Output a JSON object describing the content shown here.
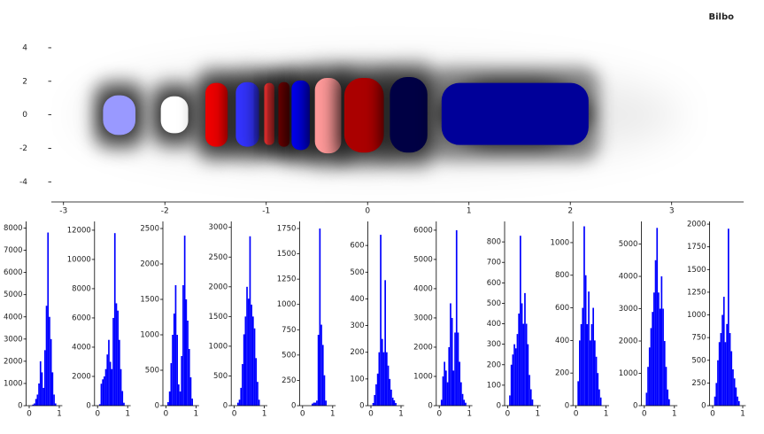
{
  "chart_data": [
    {
      "type": "cluster",
      "title": "Bilbo",
      "xlim": [
        -3.12,
        3.71
      ],
      "ylim": [
        -5.2,
        5.9
      ],
      "xticks": [
        -3,
        -2,
        -1,
        0,
        1,
        2,
        3
      ],
      "yticks": [
        -4,
        -2,
        0,
        2,
        4
      ],
      "series": [
        {
          "color": "#9999ff",
          "x": [
            -2.61,
            -2.29
          ],
          "y": [
            -1.2,
            1.16
          ]
        },
        {
          "color": "#ffffff",
          "x": [
            -2.04,
            -1.77
          ],
          "y": [
            -1.1,
            1.1
          ]
        },
        {
          "color": "#ee0000",
          "x": [
            -1.6,
            -1.38
          ],
          "y": [
            -1.9,
            1.9
          ]
        },
        {
          "color": "#3333ff",
          "x": [
            -1.3,
            -1.07
          ],
          "y": [
            -1.9,
            1.95
          ]
        },
        {
          "color": "#ff3333",
          "x": [
            -1.02,
            -0.92
          ],
          "y": [
            -1.8,
            1.9
          ]
        },
        {
          "color": "#800000",
          "x": [
            -0.88,
            -0.77
          ],
          "y": [
            -1.9,
            1.95
          ]
        },
        {
          "color": "#0000ee",
          "x": [
            -0.75,
            -0.57
          ],
          "y": [
            -2.1,
            2.05
          ]
        },
        {
          "color": "#ff9999",
          "x": [
            -0.52,
            -0.26
          ],
          "y": [
            -2.3,
            2.2
          ]
        },
        {
          "color": "#aa0000",
          "x": [
            -0.23,
            0.16
          ],
          "y": [
            -2.25,
            2.2
          ]
        },
        {
          "color": "#000044",
          "x": [
            0.22,
            0.59
          ],
          "y": [
            -2.25,
            2.25
          ]
        },
        {
          "color": "#000099",
          "x": [
            0.73,
            2.18
          ],
          "y": [
            -1.8,
            1.9
          ]
        }
      ]
    },
    {
      "type": "histogram",
      "color": "#0000ff",
      "xlim": [
        -0.1,
        1.1
      ],
      "ylim": [
        0,
        8300
      ],
      "xticks": [
        0,
        1
      ],
      "yticks": [
        0,
        1000,
        2000,
        3000,
        4000,
        5000,
        6000,
        7000,
        8000
      ],
      "bins": [
        0,
        0.05,
        0.1,
        0.15,
        0.2,
        0.25,
        0.3,
        0.35,
        0.4,
        0.45,
        0.5,
        0.55,
        0.6,
        0.65,
        0.7,
        0.75,
        0.8,
        0.85,
        0.9,
        0.95,
        1
      ],
      "counts": [
        0,
        0,
        50,
        100,
        300,
        500,
        1000,
        2000,
        1500,
        800,
        2500,
        4500,
        7800,
        4000,
        3000,
        1500,
        500,
        100,
        0,
        0
      ]
    },
    {
      "type": "histogram",
      "color": "#0000ff",
      "xlim": [
        -0.1,
        1.1
      ],
      "ylim": [
        0,
        12600
      ],
      "xticks": [
        0,
        1
      ],
      "yticks": [
        0,
        2000,
        4000,
        6000,
        8000,
        10000,
        12000
      ],
      "bins": [
        0,
        0.05,
        0.1,
        0.15,
        0.2,
        0.25,
        0.3,
        0.35,
        0.4,
        0.45,
        0.5,
        0.55,
        0.6,
        0.65,
        0.7,
        0.75,
        0.8,
        0.85,
        0.9,
        0.95,
        1
      ],
      "counts": [
        0,
        100,
        1500,
        1800,
        2000,
        2500,
        3500,
        4500,
        3000,
        2500,
        6000,
        11800,
        7000,
        6500,
        4500,
        2500,
        1000,
        200,
        0,
        0
      ]
    },
    {
      "type": "histogram",
      "color": "#0000ff",
      "xlim": [
        -0.1,
        1.1
      ],
      "ylim": [
        0,
        2600
      ],
      "xticks": [
        0,
        1
      ],
      "yticks": [
        0,
        500,
        1000,
        1500,
        2000,
        2500
      ],
      "bins": [
        0,
        0.05,
        0.1,
        0.15,
        0.2,
        0.25,
        0.3,
        0.35,
        0.4,
        0.45,
        0.5,
        0.55,
        0.6,
        0.65,
        0.7,
        0.75,
        0.8,
        0.85,
        0.9,
        0.95,
        1
      ],
      "counts": [
        0,
        50,
        200,
        600,
        1000,
        1300,
        1700,
        1000,
        300,
        200,
        700,
        1700,
        2400,
        1500,
        1200,
        800,
        400,
        100,
        0,
        0
      ]
    },
    {
      "type": "histogram",
      "color": "#0000ff",
      "xlim": [
        -0.1,
        1.1
      ],
      "ylim": [
        0,
        3100
      ],
      "xticks": [
        0,
        1
      ],
      "yticks": [
        0,
        500,
        1000,
        1500,
        2000,
        2500,
        3000
      ],
      "bins": [
        0,
        0.05,
        0.1,
        0.15,
        0.2,
        0.25,
        0.3,
        0.35,
        0.4,
        0.45,
        0.5,
        0.55,
        0.6,
        0.65,
        0.7,
        0.75,
        0.8,
        0.85,
        0.9,
        0.95,
        1
      ],
      "counts": [
        0,
        0,
        50,
        100,
        300,
        700,
        1200,
        1500,
        2000,
        1800,
        2850,
        1700,
        1500,
        1300,
        800,
        400,
        100,
        0,
        0,
        0
      ]
    },
    {
      "type": "histogram",
      "color": "#0000ff",
      "xlim": [
        -0.1,
        1.1
      ],
      "ylim": [
        0,
        1820
      ],
      "xticks": [
        0,
        1
      ],
      "yticks": [
        0,
        250,
        500,
        750,
        1000,
        1250,
        1500,
        1750
      ],
      "bins": [
        0,
        0.05,
        0.1,
        0.15,
        0.2,
        0.25,
        0.3,
        0.35,
        0.4,
        0.45,
        0.5,
        0.55,
        0.6,
        0.65,
        0.7,
        0.75,
        0.8,
        0.85,
        0.9,
        0.95,
        1
      ],
      "counts": [
        0,
        0,
        0,
        0,
        0,
        0,
        20,
        30,
        30,
        50,
        700,
        1750,
        800,
        600,
        300,
        50,
        0,
        0,
        0,
        0
      ]
    },
    {
      "type": "histogram",
      "color": "#0000ff",
      "xlim": [
        -0.1,
        1.1
      ],
      "ylim": [
        0,
        690
      ],
      "xticks": [
        0,
        1
      ],
      "yticks": [
        0,
        100,
        200,
        300,
        400,
        500,
        600
      ],
      "bins": [
        0,
        0.05,
        0.1,
        0.15,
        0.2,
        0.25,
        0.3,
        0.35,
        0.4,
        0.45,
        0.5,
        0.55,
        0.6,
        0.65,
        0.7,
        0.75,
        0.8,
        0.85,
        0.9,
        0.95,
        1
      ],
      "counts": [
        0,
        10,
        40,
        80,
        120,
        200,
        640,
        250,
        200,
        470,
        200,
        150,
        100,
        60,
        30,
        20,
        10,
        0,
        0,
        0
      ]
    },
    {
      "type": "histogram",
      "color": "#0000ff",
      "xlim": [
        -0.1,
        1.1
      ],
      "ylim": [
        0,
        6300
      ],
      "xticks": [
        0,
        1
      ],
      "yticks": [
        0,
        1000,
        2000,
        3000,
        4000,
        5000,
        6000
      ],
      "bins": [
        0,
        0.05,
        0.1,
        0.15,
        0.2,
        0.25,
        0.3,
        0.35,
        0.4,
        0.45,
        0.5,
        0.55,
        0.6,
        0.65,
        0.7,
        0.75,
        0.8,
        0.85,
        0.9,
        0.95,
        1
      ],
      "counts": [
        0,
        200,
        1000,
        1500,
        1200,
        800,
        2000,
        3500,
        3000,
        1200,
        2500,
        6000,
        2500,
        1500,
        800,
        400,
        200,
        100,
        0,
        0
      ]
    },
    {
      "type": "histogram",
      "color": "#0000ff",
      "xlim": [
        -0.1,
        1.1
      ],
      "ylim": [
        0,
        900
      ],
      "xticks": [
        0,
        1
      ],
      "yticks": [
        0,
        100,
        200,
        300,
        400,
        500,
        600,
        700,
        800
      ],
      "bins": [
        0,
        0.05,
        0.1,
        0.15,
        0.2,
        0.25,
        0.3,
        0.35,
        0.4,
        0.45,
        0.5,
        0.55,
        0.6,
        0.65,
        0.7,
        0.75,
        0.8,
        0.85,
        0.9,
        0.95,
        1
      ],
      "counts": [
        0,
        50,
        200,
        250,
        300,
        280,
        350,
        450,
        830,
        500,
        400,
        550,
        400,
        300,
        150,
        80,
        30,
        0,
        0,
        0
      ]
    },
    {
      "type": "histogram",
      "color": "#0000ff",
      "xlim": [
        -0.1,
        1.1
      ],
      "ylim": [
        0,
        1130
      ],
      "xticks": [
        0,
        1
      ],
      "yticks": [
        0,
        200,
        400,
        600,
        800,
        1000
      ],
      "bins": [
        0,
        0.05,
        0.1,
        0.15,
        0.2,
        0.25,
        0.3,
        0.35,
        0.4,
        0.45,
        0.5,
        0.55,
        0.6,
        0.65,
        0.7,
        0.75,
        0.8,
        0.85,
        0.9,
        0.95,
        1
      ],
      "counts": [
        0,
        150,
        400,
        500,
        600,
        1100,
        800,
        500,
        700,
        400,
        500,
        600,
        400,
        300,
        200,
        100,
        50,
        0,
        0,
        0
      ]
    },
    {
      "type": "histogram",
      "color": "#0000ff",
      "xlim": [
        -0.1,
        1.1
      ],
      "ylim": [
        0,
        5700
      ],
      "xticks": [
        0,
        1
      ],
      "yticks": [
        0,
        1000,
        2000,
        3000,
        4000,
        5000
      ],
      "bins": [
        0,
        0.05,
        0.1,
        0.15,
        0.2,
        0.25,
        0.3,
        0.35,
        0.4,
        0.45,
        0.5,
        0.55,
        0.6,
        0.65,
        0.7,
        0.75,
        0.8,
        0.85,
        0.9,
        0.95,
        1
      ],
      "counts": [
        0,
        400,
        1200,
        1800,
        2400,
        2900,
        3500,
        4500,
        5500,
        3500,
        3000,
        4000,
        3000,
        2000,
        1200,
        500,
        200,
        0,
        0,
        0
      ]
    },
    {
      "type": "histogram",
      "color": "#0000ff",
      "xlim": [
        -0.1,
        1.1
      ],
      "ylim": [
        0,
        2030
      ],
      "xticks": [
        0,
        1
      ],
      "yticks": [
        0,
        250,
        500,
        750,
        1000,
        1250,
        1500,
        1750,
        2000
      ],
      "bins": [
        0,
        0.05,
        0.1,
        0.15,
        0.2,
        0.25,
        0.3,
        0.35,
        0.4,
        0.45,
        0.5,
        0.55,
        0.6,
        0.65,
        0.7,
        0.75,
        0.8,
        0.85,
        0.9,
        0.95,
        1
      ],
      "counts": [
        0,
        100,
        250,
        500,
        700,
        800,
        1000,
        1200,
        700,
        900,
        1950,
        800,
        600,
        400,
        300,
        200,
        100,
        50,
        0,
        0
      ]
    }
  ]
}
